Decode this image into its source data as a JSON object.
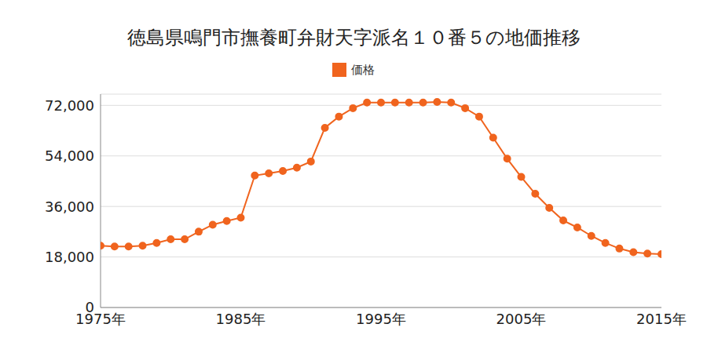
{
  "chart_data": {
    "type": "line",
    "title": "徳島県鳴門市撫養町弁財天字派名１０番５の地価推移",
    "x": [
      1975,
      1976,
      1977,
      1978,
      1979,
      1980,
      1981,
      1982,
      1983,
      1984,
      1985,
      1986,
      1987,
      1988,
      1989,
      1990,
      1991,
      1992,
      1993,
      1994,
      1995,
      1996,
      1997,
      1998,
      1999,
      2000,
      2001,
      2002,
      2003,
      2004,
      2005,
      2006,
      2007,
      2008,
      2009,
      2010,
      2011,
      2012,
      2013,
      2014,
      2015
    ],
    "series": [
      {
        "name": "価格",
        "color": "#f0641e",
        "marker": "circle",
        "values": [
          22000,
          21700,
          21700,
          22000,
          23000,
          24300,
          24300,
          27000,
          29500,
          30800,
          32000,
          47000,
          47800,
          48600,
          49800,
          52000,
          64000,
          68000,
          71000,
          73000,
          73000,
          73000,
          73000,
          73000,
          73200,
          73000,
          71000,
          68000,
          60500,
          53000,
          46500,
          40500,
          35500,
          31000,
          28500,
          25500,
          23000,
          21000,
          19700,
          19200,
          19000
        ]
      }
    ],
    "xlim": [
      1975,
      2015
    ],
    "xticks": [
      {
        "value": 1975,
        "label": "1975年"
      },
      {
        "value": 1985,
        "label": "1985年"
      },
      {
        "value": 1995,
        "label": "1995年"
      },
      {
        "value": 2005,
        "label": "2005年"
      },
      {
        "value": 2015,
        "label": "2015年"
      }
    ],
    "ylim": [
      0,
      76000
    ],
    "yticks": [
      0,
      {
        "value": 18000,
        "label": "18,000"
      },
      {
        "value": 36000,
        "label": "36,000"
      },
      {
        "value": 54000,
        "label": "54,000"
      },
      {
        "value": 72000,
        "label": "72,000"
      }
    ],
    "grid": true,
    "legend": "top"
  }
}
